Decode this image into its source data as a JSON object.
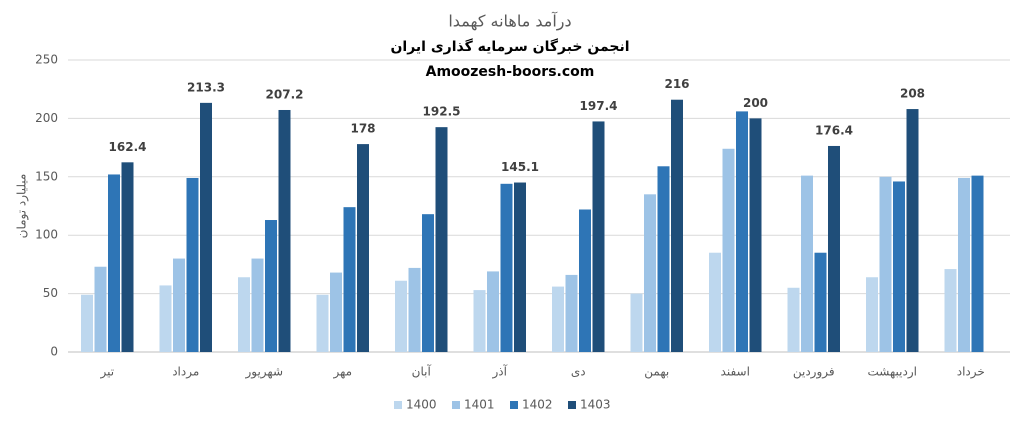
{
  "chart_data": {
    "type": "bar",
    "title": "درآمد ماهانه کهمدا",
    "subtitle": [
      "انجمن خبرگان سرمایه گذاری ایران",
      "Amoozesh-boors.com"
    ],
    "y_label": "میلیارد تومان",
    "categories": [
      "تیر",
      "مرداد",
      "شهریور",
      "مهر",
      "آبان",
      "آذر",
      "دی",
      "بهمن",
      "اسفند",
      "فروردین",
      "اردیبهشت",
      "خرداد"
    ],
    "series": [
      {
        "name": "1400",
        "color": "#bdd7ee",
        "values": [
          49,
          57,
          64,
          49,
          61,
          53,
          56,
          50,
          85,
          55,
          64,
          71
        ]
      },
      {
        "name": "1401",
        "color": "#9dc3e6",
        "values": [
          73,
          80,
          80,
          68,
          72,
          69,
          66,
          135,
          174,
          151,
          150,
          149
        ]
      },
      {
        "name": "1402",
        "color": "#2e75b6",
        "values": [
          152,
          149,
          113,
          124,
          118,
          144,
          122,
          159,
          206,
          85,
          146,
          151
        ]
      },
      {
        "name": "1403",
        "color": "#1f4e79",
        "values": [
          162.4,
          213.3,
          207.2,
          178,
          192.5,
          145.1,
          197.4,
          216,
          200,
          176.4,
          208,
          null
        ],
        "show_labels": true
      }
    ],
    "ylim": [
      0,
      250
    ],
    "yticks": [
      0,
      50,
      100,
      150,
      200,
      250
    ],
    "grid": true,
    "legend": "bottom"
  }
}
